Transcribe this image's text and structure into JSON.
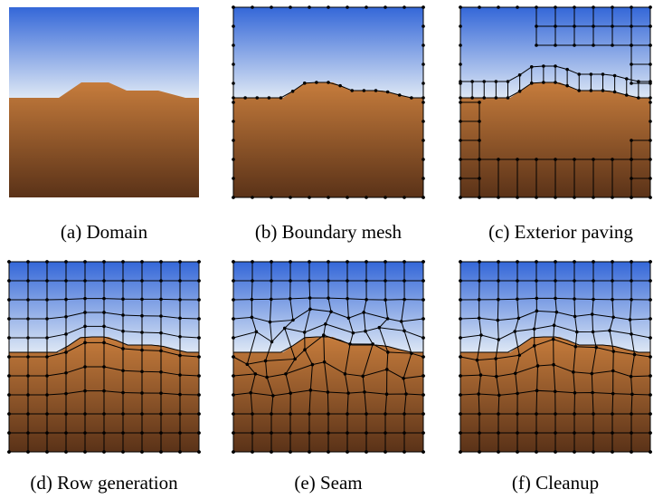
{
  "panels": [
    {
      "caption": "(a) Domain"
    },
    {
      "caption": "(b) Boundary mesh"
    },
    {
      "caption": "(c) Exterior paving"
    },
    {
      "caption": "(d) Row generation"
    },
    {
      "caption": "(e) Seam"
    },
    {
      "caption": "(f) Cleanup"
    }
  ]
}
